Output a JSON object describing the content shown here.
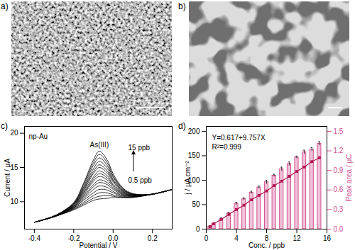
{
  "chart_data": [
    {
      "type": "image",
      "panel": "a)"
    },
    {
      "type": "image",
      "panel": "b)"
    },
    {
      "type": "line",
      "panel": "c)",
      "x": [
        -0.4,
        -0.3,
        -0.2,
        -0.15,
        -0.1,
        -0.07,
        -0.03,
        0.0,
        0.05,
        0.1,
        0.2,
        0.3
      ],
      "xlim": [
        -0.45,
        0.3
      ],
      "xticks": [
        -0.4,
        -0.2,
        {
          "value": 0,
          "label": "0.0"
        },
        0.2
      ],
      "xlabel": "Potential / V",
      "ylabel": "Current / μA",
      "ylim": [
        6,
        21
      ],
      "yticks": [
        10,
        15,
        20
      ],
      "color": "#000000",
      "annotations": [
        "np-Au",
        "As(III)",
        "15 ppb",
        "0.5 ppb"
      ],
      "series": [
        {
          "values": [
            7.0,
            7.8,
            8.8,
            9.5,
            10.2,
            10.4,
            10.5,
            10.6,
            10.6,
            10.6,
            11.1,
            11.8
          ]
        },
        {
          "values": [
            7.0,
            7.8,
            8.9,
            9.7,
            10.5,
            10.8,
            10.9,
            10.8,
            10.6,
            10.7,
            11.1,
            11.8
          ]
        },
        {
          "values": [
            7.0,
            7.8,
            9.0,
            9.9,
            10.9,
            11.3,
            11.3,
            11.0,
            10.7,
            10.7,
            11.1,
            11.8
          ]
        },
        {
          "values": [
            7.0,
            7.8,
            9.1,
            10.2,
            11.3,
            11.8,
            11.7,
            11.3,
            10.8,
            10.7,
            11.1,
            11.8
          ]
        },
        {
          "values": [
            7.0,
            7.8,
            9.1,
            10.4,
            11.8,
            12.3,
            12.1,
            11.5,
            10.9,
            10.8,
            11.1,
            11.8
          ]
        },
        {
          "values": [
            7.0,
            7.9,
            9.2,
            10.6,
            12.2,
            12.8,
            12.5,
            11.8,
            11.0,
            10.8,
            11.1,
            11.8
          ]
        },
        {
          "values": [
            7.0,
            7.9,
            9.3,
            10.8,
            12.5,
            13.2,
            12.8,
            12.0,
            11.1,
            10.8,
            11.1,
            11.8
          ]
        },
        {
          "values": [
            7.0,
            7.9,
            9.3,
            11.0,
            13.0,
            13.7,
            13.2,
            12.2,
            11.2,
            10.9,
            11.1,
            11.8
          ]
        },
        {
          "values": [
            7.0,
            7.9,
            9.4,
            11.2,
            13.3,
            14.1,
            13.5,
            12.4,
            11.3,
            10.9,
            11.1,
            11.8
          ]
        },
        {
          "values": [
            7.0,
            7.9,
            9.5,
            11.4,
            13.6,
            14.5,
            13.8,
            12.6,
            11.4,
            10.9,
            11.1,
            11.8
          ]
        },
        {
          "values": [
            7.0,
            7.9,
            9.5,
            11.6,
            14.1,
            15.0,
            14.2,
            12.9,
            11.5,
            11.0,
            11.1,
            11.8
          ]
        },
        {
          "values": [
            7.0,
            7.9,
            9.6,
            11.8,
            14.4,
            15.4,
            14.5,
            13.1,
            11.6,
            11.0,
            11.1,
            11.8
          ]
        },
        {
          "values": [
            7.0,
            7.9,
            9.7,
            12.0,
            14.8,
            15.9,
            14.9,
            13.3,
            11.7,
            11.1,
            11.1,
            11.8
          ]
        },
        {
          "values": [
            7.0,
            7.9,
            9.7,
            12.2,
            15.3,
            16.4,
            15.3,
            13.6,
            11.8,
            11.1,
            11.1,
            11.8
          ]
        },
        {
          "values": [
            7.0,
            7.9,
            9.8,
            12.5,
            15.7,
            16.9,
            15.7,
            13.8,
            11.9,
            11.1,
            11.1,
            11.8
          ]
        },
        {
          "values": [
            7.0,
            7.9,
            9.9,
            12.7,
            16.1,
            17.4,
            16.1,
            14.1,
            12.0,
            11.2,
            11.1,
            11.8
          ]
        }
      ]
    },
    {
      "type": "bar",
      "panel": "d)",
      "x": [
        0.5,
        1,
        2,
        3,
        4,
        5,
        6,
        7,
        8,
        9,
        10,
        11,
        12,
        13,
        14,
        15
      ],
      "xlim": [
        0,
        16
      ],
      "xticks": [
        0,
        4,
        8,
        12,
        16
      ],
      "xlabel": "Conc. / ppb",
      "ylabel": "j / μA cm⁻²",
      "ylim": [
        0,
        210
      ],
      "yticks": [
        0,
        50,
        100,
        150,
        200
      ],
      "y2label": "Peak area / μC",
      "y2lim": [
        0,
        1.575
      ],
      "y2ticks": [
        {
          "value": 0,
          "label": "0.0"
        },
        0.3,
        0.6,
        0.9,
        1.2,
        1.5
      ],
      "annotations": [
        "Y=0.617+9.757X",
        "R²=0.999"
      ],
      "series": [
        {
          "type": "bar",
          "axis": "y2",
          "color": "#d4508f",
          "values": [
            0.04,
            0.08,
            0.15,
            0.24,
            0.39,
            0.46,
            0.56,
            0.64,
            0.72,
            0.82,
            0.92,
            1.0,
            1.1,
            1.18,
            1.22,
            1.31
          ],
          "errors": [
            0.01,
            0.01,
            0.02,
            0.02,
            0.02,
            0.02,
            0.02,
            0.02,
            0.03,
            0.02,
            0.03,
            0.03,
            0.02,
            0.03,
            0.03,
            0.03
          ]
        },
        {
          "type": "line",
          "marker": "square",
          "color": "#b0184f",
          "values": [
            5,
            11,
            20,
            30,
            40,
            49,
            60,
            69,
            78,
            89,
            98,
            108,
            118,
            127,
            138,
            146
          ]
        }
      ]
    }
  ]
}
